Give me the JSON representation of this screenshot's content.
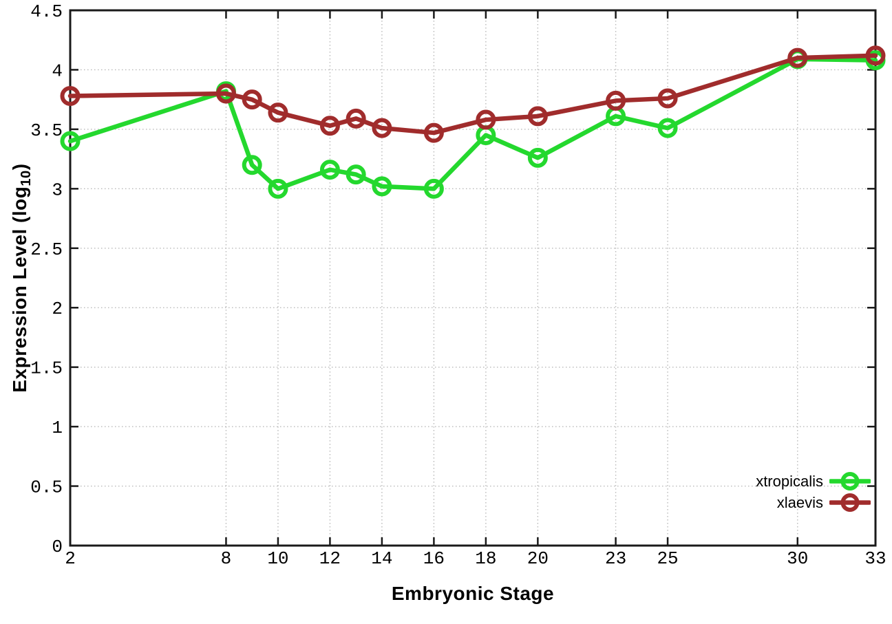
{
  "figure": {
    "background": "#ffffff"
  },
  "chart_data": {
    "type": "line",
    "title": "",
    "xlabel": "Embryonic Stage",
    "ylabel": "Expression Level (log10)",
    "ylabel_parts": {
      "main": "Expression Level (log",
      "sub": "10",
      "suffix": ")"
    },
    "x": [
      2,
      8,
      9,
      10,
      12,
      13,
      14,
      16,
      18,
      20,
      23,
      25,
      30,
      33
    ],
    "series": [
      {
        "name": "xtropicalis",
        "color": "#24d82e",
        "values": [
          3.4,
          3.82,
          3.2,
          3.0,
          3.16,
          3.12,
          3.02,
          3.0,
          3.45,
          3.26,
          3.61,
          3.51,
          4.09,
          4.08
        ]
      },
      {
        "name": "xlaevis",
        "color": "#a02c2c",
        "values": [
          3.78,
          3.8,
          3.75,
          3.64,
          3.53,
          3.59,
          3.51,
          3.47,
          3.58,
          3.61,
          3.74,
          3.76,
          4.1,
          4.12
        ]
      }
    ],
    "xlim": [
      2,
      33
    ],
    "ylim": [
      0,
      4.5
    ],
    "x_ticks": [
      2,
      8,
      10,
      12,
      14,
      16,
      18,
      20,
      23,
      25,
      30,
      33
    ],
    "x_tick_labels": [
      "2",
      "8",
      "10",
      "12",
      "14",
      "16",
      "18",
      "20",
      "23",
      "25",
      "30",
      "33"
    ],
    "y_ticks": [
      0,
      0.5,
      1,
      1.5,
      2,
      2.5,
      3,
      3.5,
      4,
      4.5
    ],
    "y_tick_labels": [
      "0",
      "0.5",
      "1",
      "1.5",
      "2",
      "2.5",
      "3",
      "3.5",
      "4",
      "4.5"
    ],
    "grid": true,
    "legend_position": "bottom-right",
    "marker": "open-circle"
  },
  "colors": {
    "grid": "#b8b8b8",
    "axis": "#1a1a1a",
    "text": "#000000"
  }
}
